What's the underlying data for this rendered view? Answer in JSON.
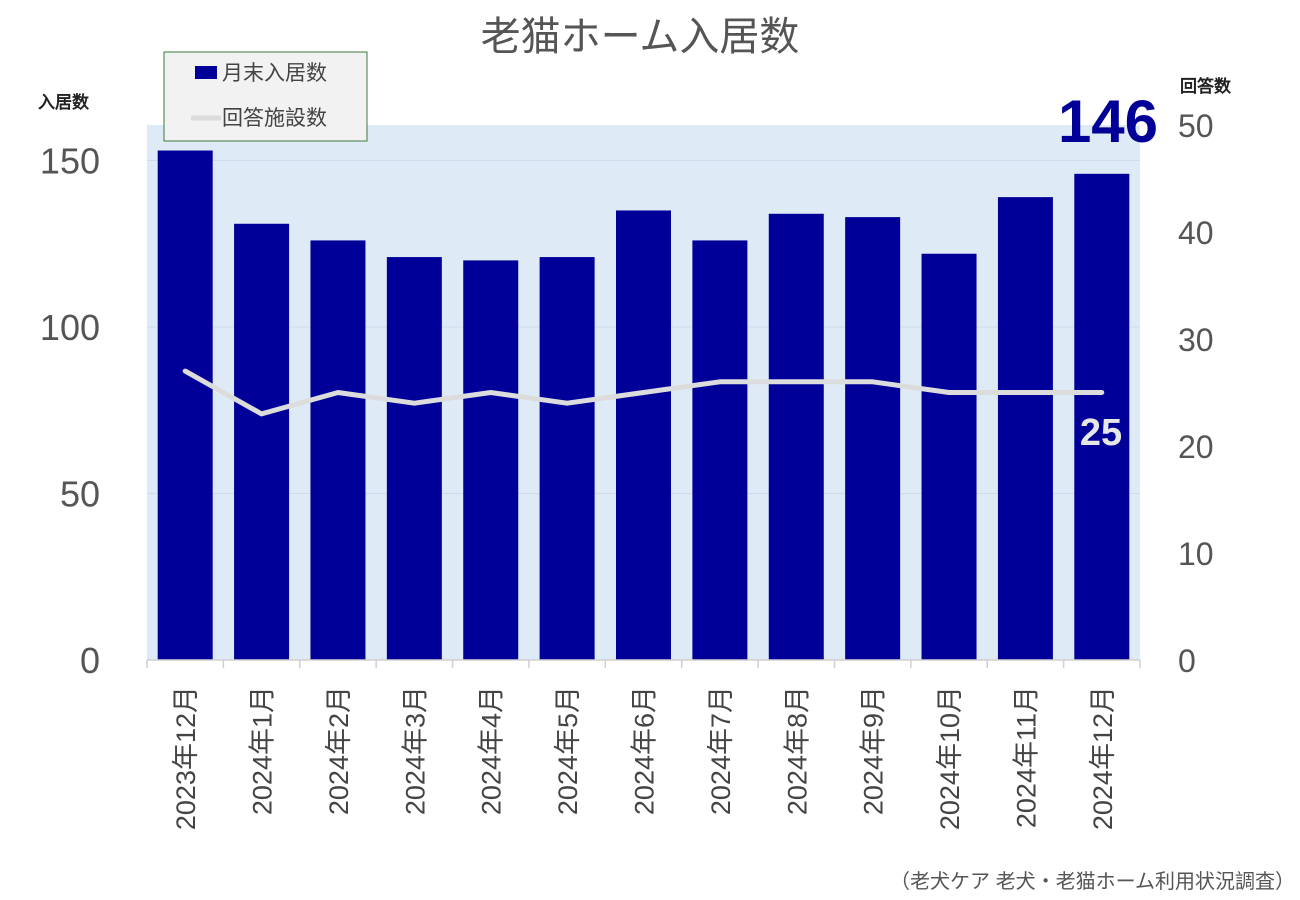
{
  "title": "老猫ホーム入居数",
  "left_axis_title": "入居数",
  "right_axis_title": "回答数",
  "source": "（老犬ケア 老犬・老猫ホーム利用状況調査）",
  "legend": {
    "bar_label": "月末入居数",
    "line_label": "回答施設数"
  },
  "callouts": {
    "bar_last": "146",
    "line_last": "25"
  },
  "colors": {
    "bar": "#000099",
    "line": "#dcdcdc",
    "plot_bg": "#deebf7",
    "legend_bg": "#f2f2f2",
    "legend_border": "#3c7a3c"
  },
  "chart_data": {
    "type": "bar",
    "categories": [
      "2023年12月",
      "2024年1月",
      "2024年2月",
      "2024年3月",
      "2024年4月",
      "2024年5月",
      "2024年6月",
      "2024年7月",
      "2024年8月",
      "2024年9月",
      "2024年10月",
      "2024年11月",
      "2024年12月"
    ],
    "series": [
      {
        "name": "月末入居数",
        "type": "bar",
        "axis": "left",
        "values": [
          153,
          131,
          126,
          121,
          120,
          121,
          135,
          126,
          134,
          133,
          122,
          139,
          146
        ]
      },
      {
        "name": "回答施設数",
        "type": "line",
        "axis": "right",
        "values": [
          27,
          23,
          25,
          24,
          25,
          24,
          25,
          26,
          26,
          26,
          25,
          25,
          25
        ]
      }
    ],
    "y_left": {
      "title": "入居数",
      "range": [
        0,
        160
      ],
      "ticks": [
        "0",
        "50",
        "100",
        "150"
      ]
    },
    "y_right": {
      "title": "回答数",
      "range": [
        0,
        50
      ],
      "ticks": [
        "0",
        "10",
        "20",
        "30",
        "40",
        "50"
      ]
    },
    "grid": true,
    "legend_position": "top-left"
  }
}
